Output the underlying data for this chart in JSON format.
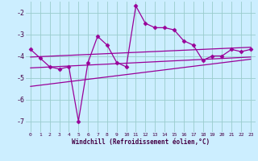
{
  "xlabel": "Windchill (Refroidissement éolien,°C)",
  "bg_color": "#cceeff",
  "line_color": "#990099",
  "grid_color": "#99cccc",
  "x_data": [
    0,
    1,
    2,
    3,
    4,
    5,
    6,
    7,
    8,
    9,
    10,
    11,
    12,
    13,
    14,
    15,
    16,
    17,
    18,
    19,
    20,
    21,
    22,
    23
  ],
  "y_main": [
    -3.7,
    -4.1,
    -4.5,
    -4.6,
    -4.5,
    -7.0,
    -4.3,
    -3.1,
    -3.5,
    -4.3,
    -4.5,
    -1.7,
    -2.5,
    -2.7,
    -2.7,
    -2.8,
    -3.3,
    -3.5,
    -4.2,
    -4.0,
    -4.0,
    -3.7,
    -3.8,
    -3.7
  ],
  "trend1_x": [
    0,
    23
  ],
  "trend1_y": [
    -4.05,
    -3.6
  ],
  "trend2_x": [
    0,
    23
  ],
  "trend2_y": [
    -4.55,
    -4.05
  ],
  "trend3_x": [
    0,
    23
  ],
  "trend3_y": [
    -5.4,
    -4.15
  ],
  "ylim": [
    -7.5,
    -1.5
  ],
  "xlim": [
    -0.5,
    23.5
  ],
  "yticks": [
    -7,
    -6,
    -5,
    -4,
    -3,
    -2
  ],
  "xticks": [
    0,
    1,
    2,
    3,
    4,
    5,
    6,
    7,
    8,
    9,
    10,
    11,
    12,
    13,
    14,
    15,
    16,
    17,
    18,
    19,
    20,
    21,
    22,
    23
  ]
}
